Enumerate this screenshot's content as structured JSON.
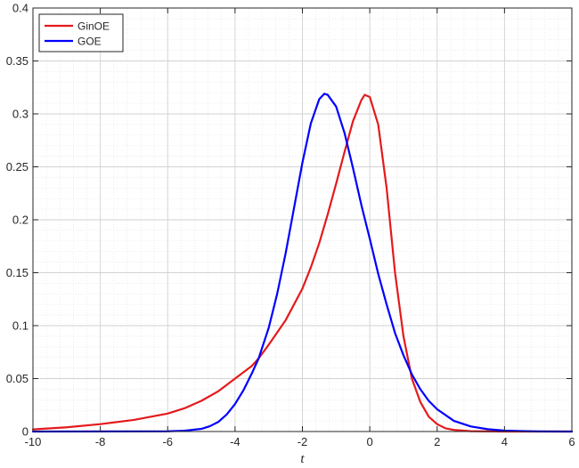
{
  "chart_data": {
    "type": "line",
    "title": "",
    "xlabel": "t",
    "ylabel": "",
    "xlim": [
      -10,
      6
    ],
    "ylim": [
      0,
      0.4
    ],
    "x_ticks": [
      -10,
      -8,
      -6,
      -4,
      -2,
      0,
      2,
      4,
      6
    ],
    "x_tick_labels": [
      "-10",
      "-8",
      "-6",
      "-4",
      "-2",
      "0",
      "2",
      "4",
      "6"
    ],
    "y_ticks": [
      0,
      0.05,
      0.1,
      0.15,
      0.2,
      0.25,
      0.3,
      0.35,
      0.4
    ],
    "y_tick_labels": [
      "0",
      "0.05",
      "0.1",
      "0.15",
      "0.2",
      "0.25",
      "0.3",
      "0.35",
      "0.4"
    ],
    "grid": true,
    "minor_grid": true,
    "legend_position": "top-left",
    "series": [
      {
        "name": "GinOE",
        "color": "#e41a1c",
        "x": [
          -10,
          -9,
          -8,
          -7,
          -6,
          -5.5,
          -5,
          -4.5,
          -4,
          -3.5,
          -3.3,
          -3,
          -2.5,
          -2,
          -1.75,
          -1.5,
          -1.25,
          -1,
          -0.75,
          -0.5,
          -0.25,
          -0.15,
          0,
          0.25,
          0.5,
          0.75,
          1,
          1.25,
          1.5,
          1.75,
          2,
          2.25,
          2.5,
          3,
          4,
          5,
          6
        ],
        "y": [
          0.002,
          0.004,
          0.007,
          0.011,
          0.017,
          0.022,
          0.029,
          0.038,
          0.05,
          0.062,
          0.069,
          0.082,
          0.105,
          0.135,
          0.155,
          0.178,
          0.205,
          0.234,
          0.264,
          0.293,
          0.313,
          0.318,
          0.316,
          0.29,
          0.23,
          0.15,
          0.09,
          0.05,
          0.028,
          0.014,
          0.007,
          0.003,
          0.0015,
          0.0003,
          0,
          0,
          0
        ]
      },
      {
        "name": "GOE",
        "color": "#0000ff",
        "x": [
          -10,
          -6,
          -5.5,
          -5,
          -4.75,
          -4.5,
          -4.25,
          -4,
          -3.75,
          -3.5,
          -3.3,
          -3,
          -2.75,
          -2.5,
          -2.25,
          -2,
          -1.75,
          -1.5,
          -1.35,
          -1.25,
          -1,
          -0.75,
          -0.5,
          -0.25,
          0,
          0.25,
          0.5,
          0.75,
          1,
          1.25,
          1.5,
          1.75,
          2,
          2.5,
          3,
          3.5,
          4,
          4.5,
          5,
          6
        ],
        "y": [
          0,
          0.0002,
          0.0008,
          0.0025,
          0.005,
          0.009,
          0.016,
          0.026,
          0.039,
          0.055,
          0.069,
          0.098,
          0.13,
          0.168,
          0.211,
          0.254,
          0.291,
          0.314,
          0.319,
          0.318,
          0.307,
          0.282,
          0.249,
          0.214,
          0.182,
          0.149,
          0.12,
          0.093,
          0.072,
          0.054,
          0.04,
          0.029,
          0.021,
          0.01,
          0.0048,
          0.0022,
          0.0009,
          0.0004,
          0.0001,
          0
        ]
      }
    ]
  }
}
